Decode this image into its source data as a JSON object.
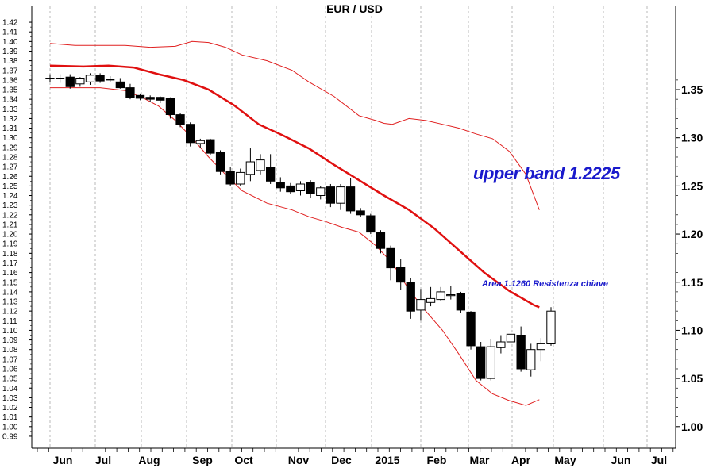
{
  "chart_data": {
    "type": "candlestick",
    "title": "EUR / USD",
    "x_labels": [
      "Jun",
      "Jul",
      "Aug",
      "Sep",
      "Oct",
      "Nov",
      "Dec",
      "2015",
      "Feb",
      "Mar",
      "Apr",
      "May",
      "Jun",
      "Jul"
    ],
    "left_y_ticks": [
      "1.42",
      "1.41",
      "1.40",
      "1.39",
      "1.38",
      "1.37",
      "1.36",
      "1.35",
      "1.34",
      "1.33",
      "1.32",
      "1.31",
      "1.30",
      "1.29",
      "1.28",
      "1.27",
      "1.26",
      "1.25",
      "1.24",
      "1.23",
      "1.22",
      "1.21",
      "1.20",
      "1.19",
      "1.18",
      "1.17",
      "1.16",
      "1.15",
      "1.14",
      "1.13",
      "1.12",
      "1.11",
      "1.10",
      "1.09",
      "1.08",
      "1.07",
      "1.06",
      "1.05",
      "1.04",
      "1.03",
      "1.02",
      "1.01",
      "1.00",
      "0.99"
    ],
    "right_y_ticks": [
      "1.35",
      "1.30",
      "1.25",
      "1.20",
      "1.15",
      "1.10",
      "1.05",
      "1.00"
    ],
    "ylim": [
      0.985,
      1.425
    ],
    "x_range": [
      0,
      30
    ],
    "grid_vertical_lines": true,
    "candles": [
      {
        "o": 1.362,
        "h": 1.366,
        "l": 1.358,
        "c": 1.362
      },
      {
        "o": 1.362,
        "h": 1.366,
        "l": 1.357,
        "c": 1.362
      },
      {
        "o": 1.363,
        "h": 1.366,
        "l": 1.351,
        "c": 1.353
      },
      {
        "o": 1.356,
        "h": 1.363,
        "l": 1.353,
        "c": 1.362
      },
      {
        "o": 1.358,
        "h": 1.367,
        "l": 1.355,
        "c": 1.365
      },
      {
        "o": 1.365,
        "h": 1.367,
        "l": 1.357,
        "c": 1.359
      },
      {
        "o": 1.361,
        "h": 1.364,
        "l": 1.358,
        "c": 1.36
      },
      {
        "o": 1.358,
        "h": 1.362,
        "l": 1.351,
        "c": 1.352
      },
      {
        "o": 1.352,
        "h": 1.356,
        "l": 1.34,
        "c": 1.342
      },
      {
        "o": 1.344,
        "h": 1.346,
        "l": 1.339,
        "c": 1.341
      },
      {
        "o": 1.342,
        "h": 1.344,
        "l": 1.337,
        "c": 1.34
      },
      {
        "o": 1.342,
        "h": 1.343,
        "l": 1.336,
        "c": 1.339
      },
      {
        "o": 1.341,
        "h": 1.342,
        "l": 1.32,
        "c": 1.324
      },
      {
        "o": 1.324,
        "h": 1.326,
        "l": 1.311,
        "c": 1.314
      },
      {
        "o": 1.314,
        "h": 1.316,
        "l": 1.291,
        "c": 1.295
      },
      {
        "o": 1.294,
        "h": 1.299,
        "l": 1.289,
        "c": 1.297
      },
      {
        "o": 1.298,
        "h": 1.299,
        "l": 1.282,
        "c": 1.284
      },
      {
        "o": 1.285,
        "h": 1.287,
        "l": 1.262,
        "c": 1.265
      },
      {
        "o": 1.265,
        "h": 1.27,
        "l": 1.25,
        "c": 1.252
      },
      {
        "o": 1.252,
        "h": 1.268,
        "l": 1.25,
        "c": 1.264
      },
      {
        "o": 1.262,
        "h": 1.289,
        "l": 1.255,
        "c": 1.275
      },
      {
        "o": 1.266,
        "h": 1.283,
        "l": 1.262,
        "c": 1.277
      },
      {
        "o": 1.269,
        "h": 1.283,
        "l": 1.252,
        "c": 1.255
      },
      {
        "o": 1.254,
        "h": 1.259,
        "l": 1.244,
        "c": 1.248
      },
      {
        "o": 1.25,
        "h": 1.253,
        "l": 1.242,
        "c": 1.244
      },
      {
        "o": 1.245,
        "h": 1.255,
        "l": 1.24,
        "c": 1.252
      },
      {
        "o": 1.254,
        "h": 1.256,
        "l": 1.238,
        "c": 1.242
      },
      {
        "o": 1.24,
        "h": 1.25,
        "l": 1.236,
        "c": 1.248
      },
      {
        "o": 1.249,
        "h": 1.252,
        "l": 1.228,
        "c": 1.232
      },
      {
        "o": 1.232,
        "h": 1.252,
        "l": 1.225,
        "c": 1.249
      },
      {
        "o": 1.249,
        "h": 1.258,
        "l": 1.221,
        "c": 1.224
      },
      {
        "o": 1.224,
        "h": 1.227,
        "l": 1.218,
        "c": 1.22
      },
      {
        "o": 1.219,
        "h": 1.221,
        "l": 1.2,
        "c": 1.202
      },
      {
        "o": 1.202,
        "h": 1.204,
        "l": 1.18,
        "c": 1.185
      },
      {
        "o": 1.185,
        "h": 1.188,
        "l": 1.152,
        "c": 1.165
      },
      {
        "o": 1.165,
        "h": 1.174,
        "l": 1.142,
        "c": 1.15
      },
      {
        "o": 1.15,
        "h": 1.154,
        "l": 1.112,
        "c": 1.12
      },
      {
        "o": 1.121,
        "h": 1.143,
        "l": 1.11,
        "c": 1.132
      },
      {
        "o": 1.129,
        "h": 1.145,
        "l": 1.125,
        "c": 1.133
      },
      {
        "o": 1.132,
        "h": 1.145,
        "l": 1.13,
        "c": 1.14
      },
      {
        "o": 1.136,
        "h": 1.146,
        "l": 1.132,
        "c": 1.137
      },
      {
        "o": 1.138,
        "h": 1.14,
        "l": 1.118,
        "c": 1.121
      },
      {
        "o": 1.119,
        "h": 1.12,
        "l": 1.08,
        "c": 1.084
      },
      {
        "o": 1.083,
        "h": 1.088,
        "l": 1.048,
        "c": 1.05
      },
      {
        "o": 1.05,
        "h": 1.091,
        "l": 1.048,
        "c": 1.083
      },
      {
        "o": 1.082,
        "h": 1.095,
        "l": 1.076,
        "c": 1.088
      },
      {
        "o": 1.088,
        "h": 1.104,
        "l": 1.079,
        "c": 1.096
      },
      {
        "o": 1.095,
        "h": 1.104,
        "l": 1.057,
        "c": 1.06
      },
      {
        "o": 1.059,
        "h": 1.086,
        "l": 1.052,
        "c": 1.08
      },
      {
        "o": 1.08,
        "h": 1.092,
        "l": 1.068,
        "c": 1.086
      },
      {
        "o": 1.086,
        "h": 1.124,
        "l": 1.084,
        "c": 1.12
      }
    ],
    "middle_band": [
      [
        0,
        1.375
      ],
      [
        2,
        1.374
      ],
      [
        3.5,
        1.375
      ],
      [
        5,
        1.373
      ],
      [
        6.5,
        1.366
      ],
      [
        8,
        1.36
      ],
      [
        9.5,
        1.35
      ],
      [
        11,
        1.334
      ],
      [
        12.5,
        1.314
      ],
      [
        14,
        1.302
      ],
      [
        15.5,
        1.289
      ],
      [
        17,
        1.272
      ],
      [
        18.5,
        1.256
      ],
      [
        20,
        1.24
      ],
      [
        21.5,
        1.225
      ],
      [
        23,
        1.206
      ],
      [
        24.5,
        1.183
      ],
      [
        26,
        1.16
      ],
      [
        27.5,
        1.141
      ],
      [
        29,
        1.126
      ],
      [
        29.3,
        1.124
      ]
    ],
    "upper_band": [
      [
        0,
        1.398
      ],
      [
        1.5,
        1.396
      ],
      [
        3,
        1.396
      ],
      [
        4.5,
        1.396
      ],
      [
        6,
        1.394
      ],
      [
        7.5,
        1.395
      ],
      [
        8.5,
        1.4
      ],
      [
        9.5,
        1.399
      ],
      [
        10.5,
        1.394
      ],
      [
        11.5,
        1.386
      ],
      [
        13,
        1.38
      ],
      [
        14.5,
        1.37
      ],
      [
        15.5,
        1.358
      ],
      [
        17,
        1.343
      ],
      [
        18.5,
        1.323
      ],
      [
        19.5,
        1.318
      ],
      [
        20,
        1.315
      ],
      [
        20.5,
        1.314
      ],
      [
        21.5,
        1.32
      ],
      [
        22.5,
        1.318
      ],
      [
        23.5,
        1.314
      ],
      [
        24.5,
        1.31
      ],
      [
        25.5,
        1.304
      ],
      [
        26.5,
        1.299
      ],
      [
        27.5,
        1.286
      ],
      [
        28.5,
        1.262
      ],
      [
        29.3,
        1.225
      ]
    ],
    "lower_band": [
      [
        0,
        1.352
      ],
      [
        1.5,
        1.352
      ],
      [
        3,
        1.352
      ],
      [
        4.5,
        1.349
      ],
      [
        5.5,
        1.342
      ],
      [
        6.5,
        1.333
      ],
      [
        7.5,
        1.318
      ],
      [
        8.5,
        1.3
      ],
      [
        9.5,
        1.28
      ],
      [
        10.5,
        1.262
      ],
      [
        11.5,
        1.245
      ],
      [
        13,
        1.232
      ],
      [
        14.5,
        1.225
      ],
      [
        15.5,
        1.218
      ],
      [
        16.5,
        1.213
      ],
      [
        17.5,
        1.207
      ],
      [
        18.5,
        1.202
      ],
      [
        19.5,
        1.188
      ],
      [
        20.5,
        1.17
      ],
      [
        21.5,
        1.142
      ],
      [
        22.5,
        1.12
      ],
      [
        23.5,
        1.1
      ],
      [
        24.5,
        1.075
      ],
      [
        25.5,
        1.048
      ],
      [
        26.5,
        1.034
      ],
      [
        27.5,
        1.027
      ],
      [
        28.5,
        1.022
      ],
      [
        29.3,
        1.028
      ]
    ],
    "colors": {
      "middle_band": "#e01010",
      "outer_bands": "#e02020",
      "annotation": "#1a1acc",
      "grid": "#b8b8b8"
    },
    "annotations": [
      {
        "text": "upper band 1.2225"
      },
      {
        "text": "Area 1.1260 Resistenza chiave"
      }
    ]
  }
}
